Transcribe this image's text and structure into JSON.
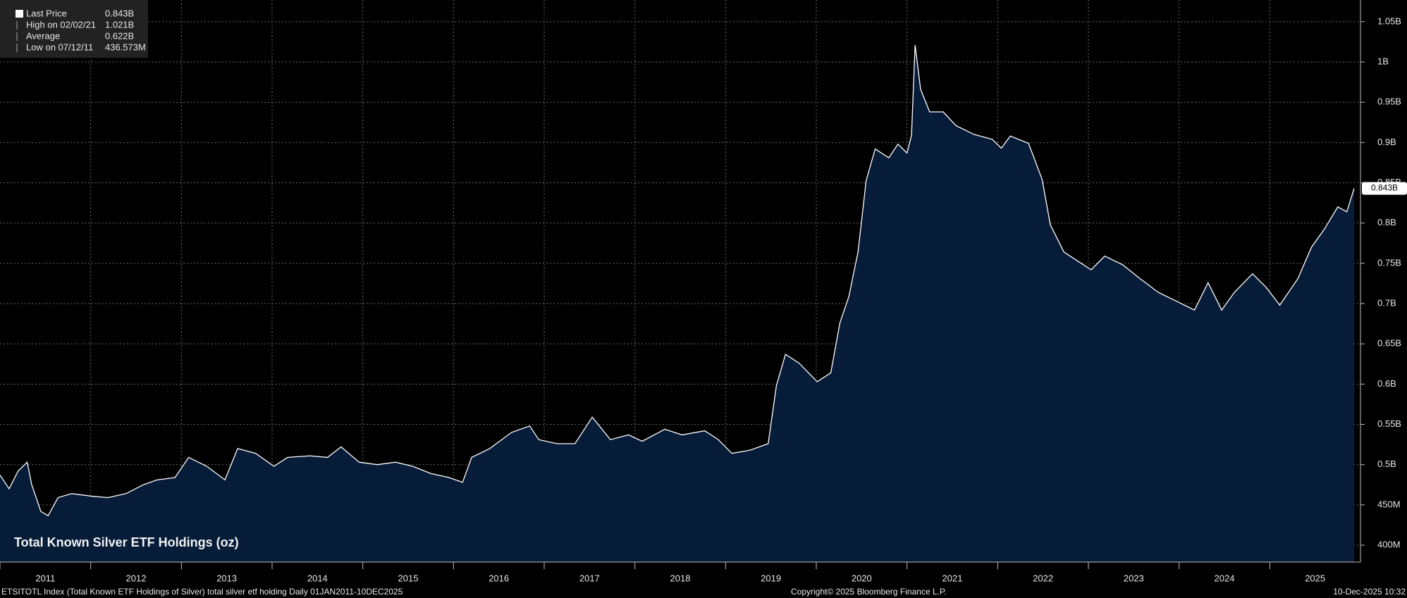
{
  "chart_data": {
    "type": "area",
    "title": "Total Known Silver ETF Holdings (oz)",
    "footer_left": "ETSITOTL Index (Total Known ETF Holdings of Silver) total silver etf holding Daily 01JAN2011-10DEC2025",
    "footer_center": "Copyright© 2025 Bloomberg Finance L.P.",
    "footer_right": "10-Dec-2025 10:32",
    "stats": {
      "labels": [
        "Last Price",
        "High on 02/02/21",
        "Average",
        "Low on 07/12/11"
      ],
      "values": [
        843,
        1021,
        622,
        436.573
      ],
      "value_labels": [
        "0.843B",
        "1.021B",
        "0.622B",
        "436.573M"
      ]
    },
    "x": [
      2011.0,
      2011.1,
      2011.2,
      2011.3,
      2011.35,
      2011.45,
      2011.53,
      2011.64,
      2011.79,
      2012.0,
      2012.19,
      2012.39,
      2012.58,
      2012.73,
      2012.93,
      2013.08,
      2013.28,
      2013.48,
      2013.62,
      2013.82,
      2014.02,
      2014.17,
      2014.42,
      2014.61,
      2014.76,
      2014.96,
      2015.16,
      2015.36,
      2015.55,
      2015.75,
      2015.95,
      2016.1,
      2016.2,
      2016.4,
      2016.64,
      2016.84,
      2016.94,
      2017.14,
      2017.34,
      2017.53,
      2017.73,
      2017.93,
      2018.08,
      2018.33,
      2018.52,
      2018.77,
      2018.92,
      2019.07,
      2019.27,
      2019.47,
      2019.56,
      2019.66,
      2019.81,
      2020.01,
      2020.16,
      2020.26,
      2020.36,
      2020.46,
      2020.55,
      2020.65,
      2020.8,
      2020.9,
      2021.0,
      2021.05,
      2021.09,
      2021.15,
      2021.25,
      2021.4,
      2021.54,
      2021.74,
      2021.94,
      2022.04,
      2022.14,
      2022.34,
      2022.49,
      2022.58,
      2022.73,
      2022.88,
      2023.03,
      2023.18,
      2023.38,
      2023.57,
      2023.77,
      2023.97,
      2024.17,
      2024.32,
      2024.47,
      2024.61,
      2024.81,
      2024.96,
      2025.11,
      2025.31,
      2025.46,
      2025.6,
      2025.75,
      2025.85,
      2025.93
    ],
    "series": [
      {
        "name": "Total Known Silver ETF Holdings",
        "color": "#ffffff",
        "fill": "#061c38",
        "values": [
          487,
          470,
          492,
          503,
          475,
          442,
          436.573,
          459,
          464,
          461,
          459,
          464,
          475,
          481,
          484,
          509,
          498,
          481,
          520,
          514,
          498,
          509,
          511,
          509,
          522,
          503,
          500,
          503,
          498,
          489,
          484,
          478,
          509,
          520,
          540,
          548,
          531,
          526,
          526,
          559,
          531,
          537,
          529,
          544,
          537,
          542,
          531,
          514,
          518,
          526,
          598,
          637,
          626,
          603,
          614,
          676,
          709,
          764,
          853,
          892,
          881,
          898,
          887,
          909,
          1021,
          966,
          938,
          938,
          921,
          910,
          904,
          893,
          908,
          899,
          854,
          798,
          764,
          753,
          742,
          759,
          748,
          731,
          714,
          703,
          692,
          726,
          692,
          714,
          737,
          720,
          698,
          731,
          770,
          792,
          820,
          814,
          843
        ]
      }
    ],
    "xlim": [
      2011,
      2026
    ],
    "xticks": [
      {
        "value": 2011,
        "label": "2011"
      },
      {
        "value": 2012,
        "label": "2012"
      },
      {
        "value": 2013,
        "label": "2013"
      },
      {
        "value": 2014,
        "label": "2014"
      },
      {
        "value": 2015,
        "label": "2015"
      },
      {
        "value": 2016,
        "label": "2016"
      },
      {
        "value": 2017,
        "label": "2017"
      },
      {
        "value": 2018,
        "label": "2018"
      },
      {
        "value": 2019,
        "label": "2019"
      },
      {
        "value": 2020,
        "label": "2020"
      },
      {
        "value": 2021,
        "label": "2021"
      },
      {
        "value": 2022,
        "label": "2022"
      },
      {
        "value": 2023,
        "label": "2023"
      },
      {
        "value": 2024,
        "label": "2024"
      },
      {
        "value": 2025,
        "label": "2025"
      }
    ],
    "ylim": [
      379,
      1077
    ],
    "yticks": [
      {
        "value": 400,
        "label": "400M"
      },
      {
        "value": 450,
        "label": "450M"
      },
      {
        "value": 500,
        "label": "0.5B"
      },
      {
        "value": 550,
        "label": "0.55B"
      },
      {
        "value": 600,
        "label": "0.6B"
      },
      {
        "value": 650,
        "label": "0.65B"
      },
      {
        "value": 700,
        "label": "0.7B"
      },
      {
        "value": 750,
        "label": "0.75B"
      },
      {
        "value": 800,
        "label": "0.8B"
      },
      {
        "value": 850,
        "label": "0.85B"
      },
      {
        "value": 900,
        "label": "0.9B"
      },
      {
        "value": 950,
        "label": "0.95B"
      },
      {
        "value": 1000,
        "label": "1B"
      },
      {
        "value": 1050,
        "label": "1.05B"
      }
    ],
    "grid": true
  }
}
